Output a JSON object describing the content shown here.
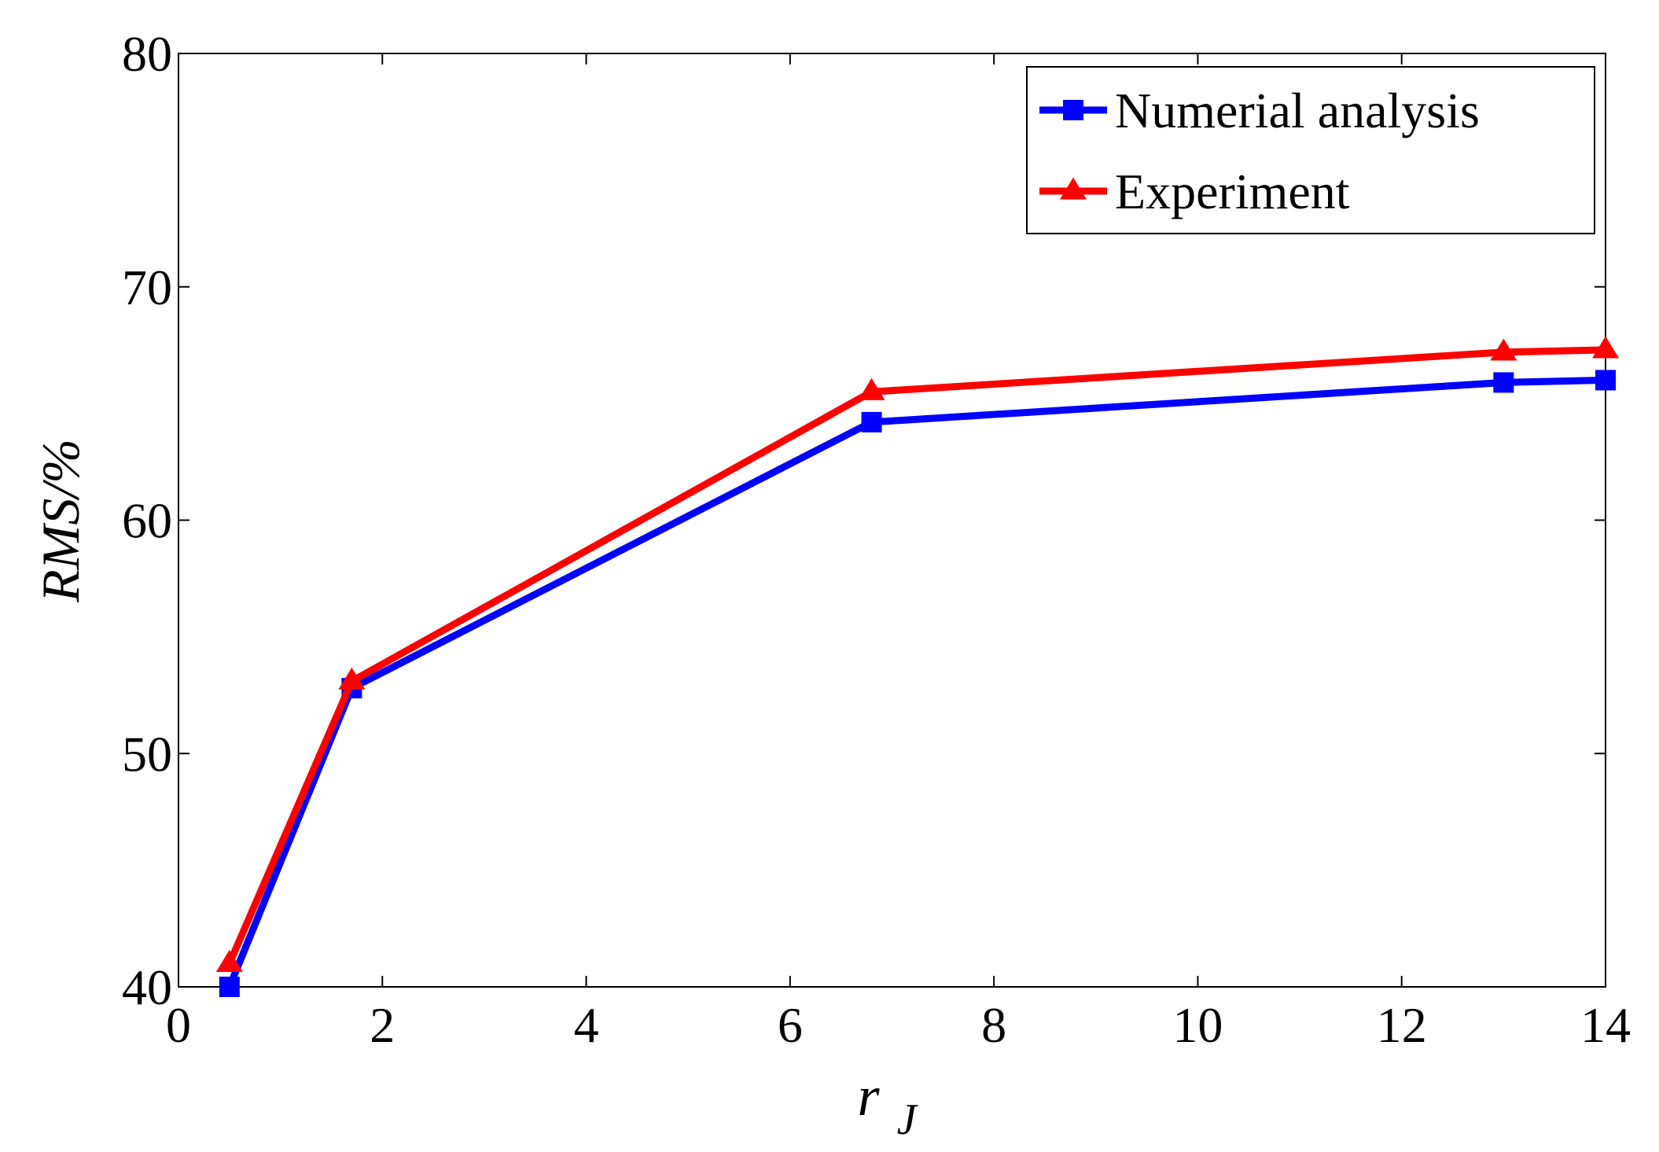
{
  "chart_data": {
    "type": "line",
    "title": "",
    "xlabel": "r",
    "xlabel_subscript": "J",
    "ylabel": "RMS/%",
    "xlim": [
      0,
      14
    ],
    "ylim": [
      40,
      80
    ],
    "xticks": [
      0,
      2,
      4,
      6,
      8,
      10,
      12,
      14
    ],
    "yticks": [
      40,
      50,
      60,
      70,
      80
    ],
    "grid": false,
    "legend_position": "top-right",
    "series": [
      {
        "name": "Numerial analysis",
        "color": "#0000ff",
        "marker": "square",
        "x": [
          0.5,
          1.7,
          6.8,
          13.0,
          14.0
        ],
        "y": [
          40.0,
          52.8,
          64.2,
          65.9,
          66.0
        ]
      },
      {
        "name": "Experiment",
        "color": "#ff0000",
        "marker": "triangle",
        "x": [
          0.5,
          1.7,
          6.8,
          13.0,
          14.0
        ],
        "y": [
          41.0,
          53.1,
          65.5,
          67.2,
          67.3
        ]
      }
    ]
  }
}
